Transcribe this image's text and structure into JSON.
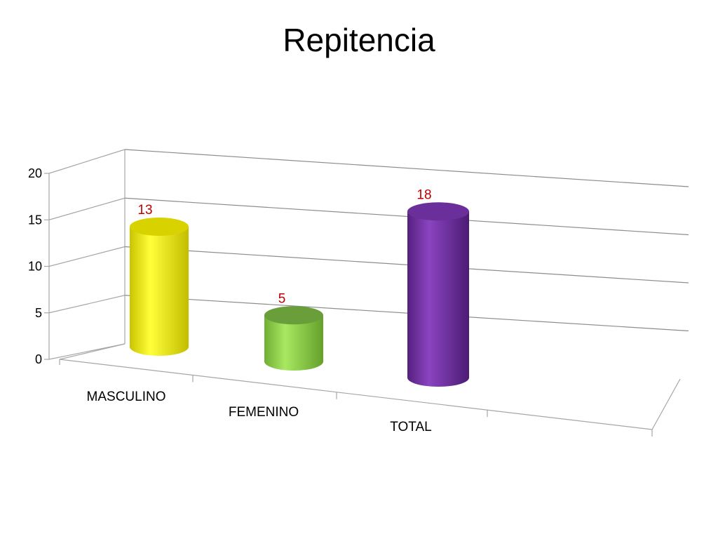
{
  "chart_data": {
    "type": "bar",
    "style": "3d-cylinder",
    "title": "Repitencia",
    "categories": [
      "MASCULINO",
      "FEMENINO",
      "TOTAL"
    ],
    "values": [
      13,
      5,
      18
    ],
    "ylim": [
      0,
      20
    ],
    "yticks": [
      0,
      5,
      10,
      15,
      20
    ],
    "grid": true,
    "legend": "none",
    "bar_colors": [
      "#f2ee00",
      "#8fd44a",
      "#7030a0"
    ],
    "data_label_color": "#c00000"
  }
}
